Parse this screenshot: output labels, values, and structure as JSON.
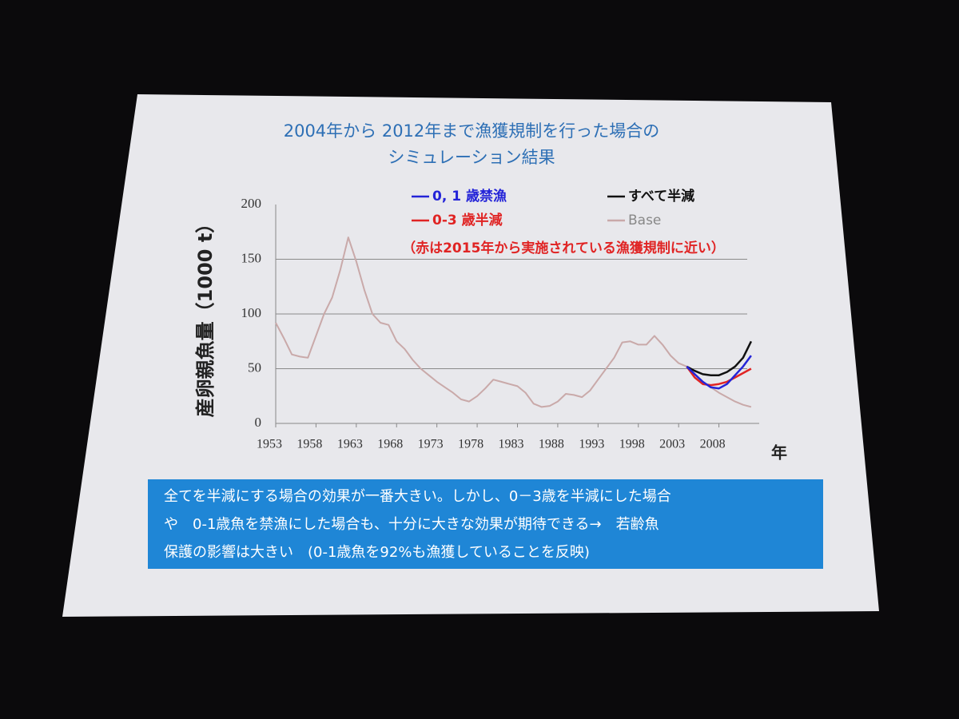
{
  "chart_data": {
    "type": "line",
    "title": "2004年から 2012年まで漁獲規制を行った場合の",
    "subtitle": "シミュレーション結果",
    "y_label": "産卵親魚量（1000 t）",
    "x_label": "年",
    "annotation": "（赤は2015年から実施されている漁獲規制に近い）",
    "note_lines": [
      "全てを半減にする場合の効果が一番大きい。しかし、0－3歳を半減にした場合",
      "や　0-1歳魚を禁漁にした場合も、十分に大きな効果が期待できる→　若齢魚",
      "保護の影響は大きい　(0-1歳魚を92%も漁獲していることを反映)"
    ],
    "xlim": [
      1953,
      2013
    ],
    "xticks": [
      1953,
      1958,
      1963,
      1968,
      1973,
      1978,
      1983,
      1988,
      1993,
      1998,
      2003,
      2008
    ],
    "ylim": [
      0,
      200
    ],
    "yticks": [
      0,
      50,
      100,
      150,
      200
    ],
    "grid": true,
    "series": [
      {
        "name": "0, 1 歳禁漁",
        "color": "#2424d8",
        "x": [
          2004,
          2005,
          2006,
          2007,
          2008,
          2009,
          2010,
          2011,
          2012
        ],
        "values": [
          52,
          45,
          38,
          33,
          32,
          36,
          44,
          52,
          62
        ]
      },
      {
        "name": "0-3 歳半減",
        "color": "#e02424",
        "x": [
          2004,
          2005,
          2006,
          2007,
          2008,
          2009,
          2010,
          2011,
          2012
        ],
        "values": [
          52,
          42,
          36,
          35,
          36,
          38,
          42,
          46,
          50
        ]
      },
      {
        "name": "すべて半減",
        "color": "#111111",
        "x": [
          2004,
          2005,
          2006,
          2007,
          2008,
          2009,
          2010,
          2011,
          2012
        ],
        "values": [
          52,
          48,
          45,
          44,
          44,
          47,
          52,
          60,
          75
        ]
      },
      {
        "name": "Base",
        "color": "#c9a9a9",
        "x": [
          1953,
          1954,
          1955,
          1956,
          1957,
          1958,
          1959,
          1960,
          1961,
          1962,
          1963,
          1964,
          1965,
          1966,
          1967,
          1968,
          1969,
          1970,
          1971,
          1972,
          1973,
          1974,
          1975,
          1976,
          1977,
          1978,
          1979,
          1980,
          1981,
          1982,
          1983,
          1984,
          1985,
          1986,
          1987,
          1988,
          1989,
          1990,
          1991,
          1992,
          1993,
          1994,
          1995,
          1996,
          1997,
          1998,
          1999,
          2000,
          2001,
          2002,
          2003,
          2004,
          2005,
          2006,
          2007,
          2008,
          2009,
          2010,
          2011,
          2012
        ],
        "values": [
          92,
          78,
          63,
          61,
          60,
          80,
          100,
          115,
          140,
          170,
          148,
          122,
          100,
          92,
          90,
          75,
          68,
          58,
          50,
          44,
          38,
          33,
          28,
          22,
          20,
          25,
          32,
          40,
          38,
          36,
          34,
          28,
          18,
          15,
          16,
          20,
          27,
          26,
          24,
          30,
          40,
          50,
          60,
          74,
          75,
          72,
          72,
          80,
          72,
          62,
          55,
          52,
          45,
          38,
          33,
          28,
          24,
          20,
          17,
          15
        ]
      }
    ]
  }
}
